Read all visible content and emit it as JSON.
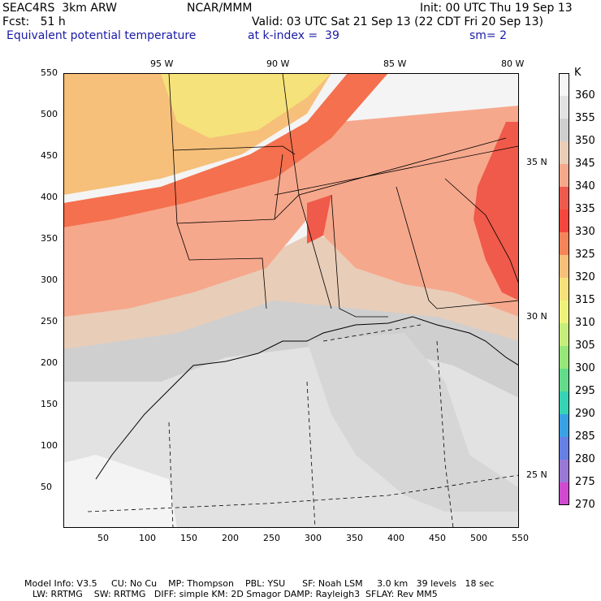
{
  "header": {
    "model": "SEAC4RS  3km ARW",
    "org": "NCAR/MMM",
    "init": "Init: 00 UTC Thu 19 Sep 13",
    "fcst": "Fcst:   51 h",
    "valid": "Valid: 03 UTC Sat 21 Sep 13 (22 CDT Fri 20 Sep 13)",
    "field": "Equivalent potential temperature",
    "level": "at k-index =  39",
    "smooth": "sm= 2"
  },
  "axes": {
    "y_ticks": [
      "550",
      "500",
      "450",
      "400",
      "350",
      "300",
      "250",
      "200",
      "150",
      "100",
      "50"
    ],
    "x_ticks": [
      "50",
      "100",
      "150",
      "200",
      "250",
      "300",
      "350",
      "400",
      "450",
      "500",
      "550"
    ],
    "lon_labels": [
      "95 W",
      "90 W",
      "85 W",
      "80 W"
    ],
    "lat_labels": [
      "35 N",
      "30 N",
      "25 N"
    ]
  },
  "legend": {
    "unit": "K",
    "levels": [
      "360",
      "355",
      "350",
      "345",
      "340",
      "335",
      "330",
      "325",
      "320",
      "315",
      "310",
      "305",
      "300",
      "295",
      "290",
      "285",
      "280",
      "275",
      "270"
    ],
    "colors": [
      "#f6f6f6",
      "#e2e2e2",
      "#cfcfcf",
      "#e8cdb8",
      "#f6a88c",
      "#ee5a4c",
      "#f4463c",
      "#f6845a",
      "#f6c07a",
      "#f6e27a",
      "#eef27a",
      "#c6ee7a",
      "#96e67a",
      "#62dc8a",
      "#36d4b4",
      "#3aa2e4",
      "#6680e6",
      "#9a78d6",
      "#d04ad0"
    ]
  },
  "map": {
    "domain": "Southeastern United States and Gulf of Mexico",
    "field_colors": {
      "warm_yellow": "#f6e27a",
      "orange": "#f6c07a",
      "salmon": "#f6a88c",
      "red": "#f05a4a",
      "tan": "#e8cdb8",
      "gray": "#cfcfcf",
      "light_gray": "#e2e2e2",
      "white": "#f6f6f6"
    }
  },
  "footer": {
    "line1": "Model Info: V3.5     CU: No Cu    MP: Thompson    PBL: YSU      SF: Noah LSM     3.0 km   39 levels   18 sec",
    "line2": "LW: RRTMG    SW: RRTMG   DIFF: simple KM: 2D Smagor DAMP: Rayleigh3  SFLAY: Rev MM5"
  }
}
